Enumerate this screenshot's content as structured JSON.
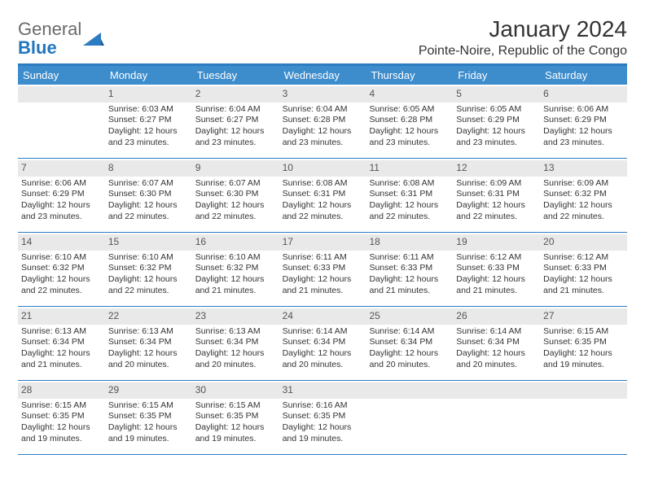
{
  "logo": {
    "word1": "General",
    "word2": "Blue"
  },
  "title": "January 2024",
  "location": "Pointe-Noire, Republic of the Congo",
  "colors": {
    "header_bar": "#3d8ccc",
    "border": "#2d7bc0",
    "daynum_bg": "#e9e9e9",
    "logo_gray": "#6a6a6a",
    "logo_blue": "#2176bd",
    "text": "#333333",
    "bg": "#ffffff"
  },
  "daysOfWeek": [
    "Sunday",
    "Monday",
    "Tuesday",
    "Wednesday",
    "Thursday",
    "Friday",
    "Saturday"
  ],
  "weeks": [
    [
      null,
      {
        "n": "1",
        "sr": "6:03 AM",
        "ss": "6:27 PM",
        "dl": "12 hours and 23 minutes."
      },
      {
        "n": "2",
        "sr": "6:04 AM",
        "ss": "6:27 PM",
        "dl": "12 hours and 23 minutes."
      },
      {
        "n": "3",
        "sr": "6:04 AM",
        "ss": "6:28 PM",
        "dl": "12 hours and 23 minutes."
      },
      {
        "n": "4",
        "sr": "6:05 AM",
        "ss": "6:28 PM",
        "dl": "12 hours and 23 minutes."
      },
      {
        "n": "5",
        "sr": "6:05 AM",
        "ss": "6:29 PM",
        "dl": "12 hours and 23 minutes."
      },
      {
        "n": "6",
        "sr": "6:06 AM",
        "ss": "6:29 PM",
        "dl": "12 hours and 23 minutes."
      }
    ],
    [
      {
        "n": "7",
        "sr": "6:06 AM",
        "ss": "6:29 PM",
        "dl": "12 hours and 23 minutes."
      },
      {
        "n": "8",
        "sr": "6:07 AM",
        "ss": "6:30 PM",
        "dl": "12 hours and 22 minutes."
      },
      {
        "n": "9",
        "sr": "6:07 AM",
        "ss": "6:30 PM",
        "dl": "12 hours and 22 minutes."
      },
      {
        "n": "10",
        "sr": "6:08 AM",
        "ss": "6:31 PM",
        "dl": "12 hours and 22 minutes."
      },
      {
        "n": "11",
        "sr": "6:08 AM",
        "ss": "6:31 PM",
        "dl": "12 hours and 22 minutes."
      },
      {
        "n": "12",
        "sr": "6:09 AM",
        "ss": "6:31 PM",
        "dl": "12 hours and 22 minutes."
      },
      {
        "n": "13",
        "sr": "6:09 AM",
        "ss": "6:32 PM",
        "dl": "12 hours and 22 minutes."
      }
    ],
    [
      {
        "n": "14",
        "sr": "6:10 AM",
        "ss": "6:32 PM",
        "dl": "12 hours and 22 minutes."
      },
      {
        "n": "15",
        "sr": "6:10 AM",
        "ss": "6:32 PM",
        "dl": "12 hours and 22 minutes."
      },
      {
        "n": "16",
        "sr": "6:10 AM",
        "ss": "6:32 PM",
        "dl": "12 hours and 21 minutes."
      },
      {
        "n": "17",
        "sr": "6:11 AM",
        "ss": "6:33 PM",
        "dl": "12 hours and 21 minutes."
      },
      {
        "n": "18",
        "sr": "6:11 AM",
        "ss": "6:33 PM",
        "dl": "12 hours and 21 minutes."
      },
      {
        "n": "19",
        "sr": "6:12 AM",
        "ss": "6:33 PM",
        "dl": "12 hours and 21 minutes."
      },
      {
        "n": "20",
        "sr": "6:12 AM",
        "ss": "6:33 PM",
        "dl": "12 hours and 21 minutes."
      }
    ],
    [
      {
        "n": "21",
        "sr": "6:13 AM",
        "ss": "6:34 PM",
        "dl": "12 hours and 21 minutes."
      },
      {
        "n": "22",
        "sr": "6:13 AM",
        "ss": "6:34 PM",
        "dl": "12 hours and 20 minutes."
      },
      {
        "n": "23",
        "sr": "6:13 AM",
        "ss": "6:34 PM",
        "dl": "12 hours and 20 minutes."
      },
      {
        "n": "24",
        "sr": "6:14 AM",
        "ss": "6:34 PM",
        "dl": "12 hours and 20 minutes."
      },
      {
        "n": "25",
        "sr": "6:14 AM",
        "ss": "6:34 PM",
        "dl": "12 hours and 20 minutes."
      },
      {
        "n": "26",
        "sr": "6:14 AM",
        "ss": "6:34 PM",
        "dl": "12 hours and 20 minutes."
      },
      {
        "n": "27",
        "sr": "6:15 AM",
        "ss": "6:35 PM",
        "dl": "12 hours and 19 minutes."
      }
    ],
    [
      {
        "n": "28",
        "sr": "6:15 AM",
        "ss": "6:35 PM",
        "dl": "12 hours and 19 minutes."
      },
      {
        "n": "29",
        "sr": "6:15 AM",
        "ss": "6:35 PM",
        "dl": "12 hours and 19 minutes."
      },
      {
        "n": "30",
        "sr": "6:15 AM",
        "ss": "6:35 PM",
        "dl": "12 hours and 19 minutes."
      },
      {
        "n": "31",
        "sr": "6:16 AM",
        "ss": "6:35 PM",
        "dl": "12 hours and 19 minutes."
      },
      null,
      null,
      null
    ]
  ],
  "labels": {
    "sunrise": "Sunrise:",
    "sunset": "Sunset:",
    "daylight": "Daylight:"
  }
}
